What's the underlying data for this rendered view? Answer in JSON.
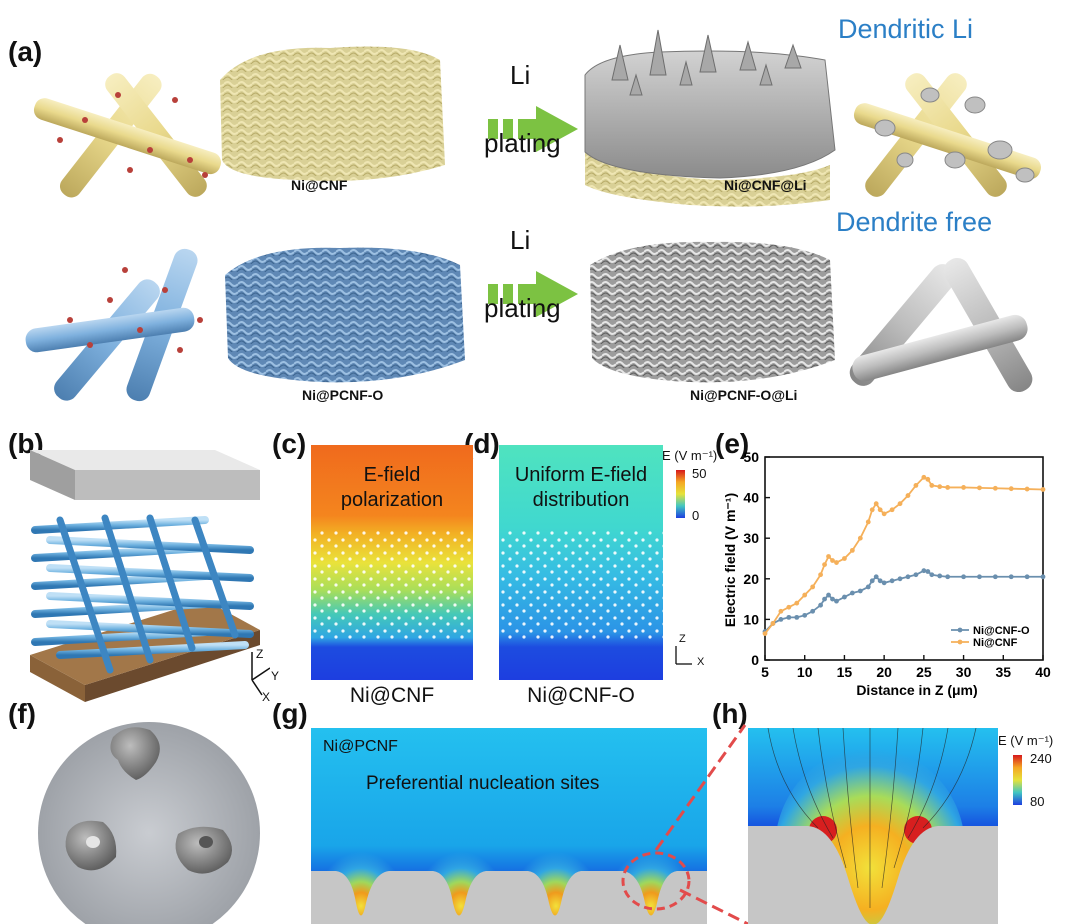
{
  "panels": {
    "a": "(a)",
    "b": "(b)",
    "c": "(c)",
    "d": "(d)",
    "e": "(e)",
    "f": "(f)",
    "g": "(g)",
    "h": "(h)"
  },
  "row1": {
    "title": "Dendritic Li",
    "arrow_top": "Li",
    "arrow_bottom": "plating",
    "cap_left": "Ni@CNF",
    "cap_right": "Ni@CNF@Li"
  },
  "row2": {
    "title": "Dendrite free",
    "arrow_top": "Li",
    "arrow_bottom": "plating",
    "cap_left": "Ni@PCNF-O",
    "cap_right": "Ni@PCNF-O@Li"
  },
  "panel_c": {
    "text1": "E-field",
    "text2": "polarization",
    "caption": "Ni@CNF"
  },
  "panel_d": {
    "text1": "Uniform E-field",
    "text2": "distribution",
    "caption": "Ni@CNF-O"
  },
  "colorbar_d": {
    "title": "E (V m⁻¹)",
    "max": "50",
    "min": "0"
  },
  "axes_b": {
    "z": "Z",
    "y": "Y",
    "x": "X"
  },
  "axes_d": {
    "z": "Z",
    "x": "X"
  },
  "panel_g": {
    "label": "Ni@PCNF",
    "text": "Preferential nucleation sites"
  },
  "colorbar_h": {
    "title": "E (V m⁻¹)",
    "max": "240",
    "min": "80"
  },
  "colors": {
    "accent_blue": "#2b7fc6",
    "orange": "#f5b05a",
    "steel": "#6a8fae",
    "green_arrow": "#7cc242"
  },
  "chart_data": {
    "type": "line",
    "xlabel": "Distance in Z (μm)",
    "ylabel": "Electric field (V m⁻¹)",
    "xlim": [
      5,
      40
    ],
    "ylim": [
      0,
      50
    ],
    "xticks": [
      "5",
      "10",
      "15",
      "20",
      "25",
      "30",
      "35",
      "40"
    ],
    "yticks": [
      "0",
      "10",
      "20",
      "30",
      "40",
      "50"
    ],
    "legend_position": "bottom-right",
    "series": [
      {
        "name": "Ni@CNF-O",
        "color": "#6a8fae",
        "x": [
          5,
          6,
          7,
          8,
          9,
          10,
          11,
          12,
          12.5,
          13,
          13.5,
          14,
          15,
          16,
          17,
          18,
          18.5,
          19,
          19.5,
          20,
          21,
          22,
          23,
          24,
          25,
          25.5,
          26,
          27,
          28,
          30,
          32,
          34,
          36,
          38,
          40
        ],
        "y": [
          7,
          9,
          10,
          10.5,
          10.5,
          11,
          12,
          13.5,
          15,
          16,
          15,
          14.5,
          15.5,
          16.5,
          17,
          18,
          19.5,
          20.5,
          19.5,
          19,
          19.5,
          20,
          20.5,
          21,
          22,
          21.8,
          21,
          20.7,
          20.5,
          20.5,
          20.5,
          20.5,
          20.5,
          20.5,
          20.5
        ]
      },
      {
        "name": "Ni@CNF",
        "color": "#f5b05a",
        "x": [
          5,
          6,
          7,
          8,
          9,
          10,
          11,
          12,
          12.5,
          13,
          13.5,
          14,
          15,
          16,
          17,
          18,
          18.5,
          19,
          19.5,
          20,
          21,
          22,
          23,
          24,
          25,
          25.5,
          26,
          27,
          28,
          30,
          32,
          34,
          36,
          38,
          40
        ],
        "y": [
          6.5,
          9,
          12,
          13,
          14,
          16,
          18,
          21,
          23.5,
          25.5,
          24.5,
          24,
          25,
          27,
          30,
          34,
          37,
          38.5,
          37,
          36,
          37,
          38.5,
          40.5,
          43,
          45,
          44.5,
          43,
          42.7,
          42.5,
          42.5,
          42.4,
          42.3,
          42.2,
          42.1,
          42
        ]
      }
    ]
  }
}
